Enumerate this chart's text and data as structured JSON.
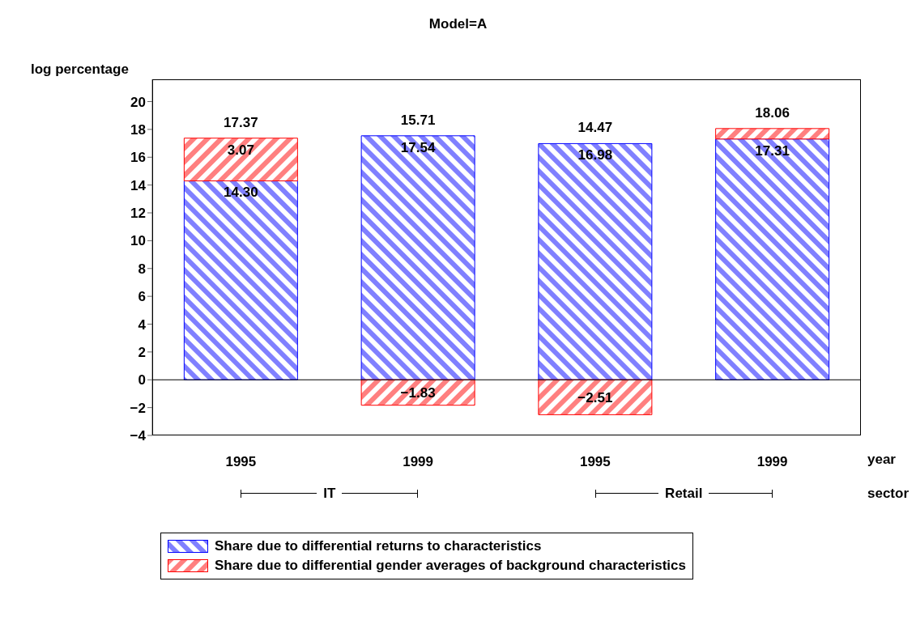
{
  "chart_data": {
    "type": "bar",
    "title": "Model=A",
    "ylabel": "log percentage",
    "xlabel": "year",
    "categories": [
      "1995",
      "1999",
      "1995",
      "1999"
    ],
    "stacked": true,
    "series": [
      {
        "name": "Share due to differential returns to characteristics",
        "color": "#0000ff",
        "values": [
          14.3,
          17.54,
          16.98,
          17.31
        ],
        "value_labels": [
          "14.30",
          "17.54",
          "16.98",
          "17.31"
        ]
      },
      {
        "name": "Share due to differential gender averages of background characteristics",
        "color": "#ff0000",
        "values": [
          3.07,
          -1.83,
          -2.51,
          0.75
        ],
        "value_labels": [
          "3.07",
          "−1.83",
          "−2.51",
          null
        ]
      }
    ],
    "totals": [
      "17.37",
      "15.71",
      "14.47",
      "18.06"
    ],
    "ylim": [
      -4,
      21.6
    ],
    "yticks": [
      {
        "value": -4,
        "label": "−4"
      },
      {
        "value": -2,
        "label": "−2"
      },
      0,
      2,
      4,
      6,
      8,
      10,
      12,
      14,
      16,
      18,
      20
    ],
    "ref_lines": [
      {
        "axis": "y",
        "value": 0,
        "color": "#000000"
      }
    ],
    "annotations": [
      "IT",
      "Retail",
      "sector"
    ],
    "grid": false,
    "legend": "bottom"
  }
}
